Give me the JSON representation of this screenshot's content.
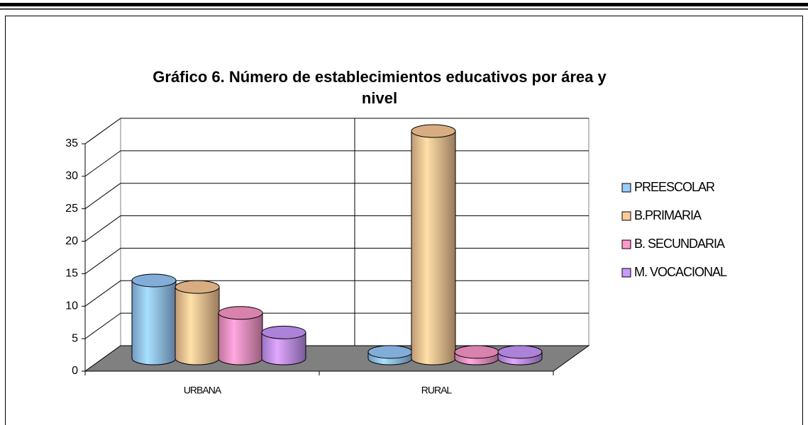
{
  "chart_data": {
    "type": "bar3d",
    "title": "Gráfico 6. Número de establecimientos educativos por área y nivel",
    "categories": [
      "URBANA",
      "RURAL"
    ],
    "series": [
      {
        "name": "PREESCOLAR",
        "color": "#99ccff",
        "values": [
          12,
          1
        ]
      },
      {
        "name": "B.PRIMARIA",
        "color": "#ffcc99",
        "values": [
          11,
          35
        ]
      },
      {
        "name": "B. SECUNDARIA",
        "color": "#ff99cc",
        "values": [
          7,
          1
        ]
      },
      {
        "name": "M. VOCACIONAL",
        "color": "#cc99ff",
        "values": [
          4,
          1
        ]
      }
    ],
    "ylim": [
      0,
      35
    ],
    "yticks": [
      0,
      5,
      10,
      15,
      20,
      25,
      30,
      35
    ],
    "grid": true,
    "legend": "right"
  }
}
